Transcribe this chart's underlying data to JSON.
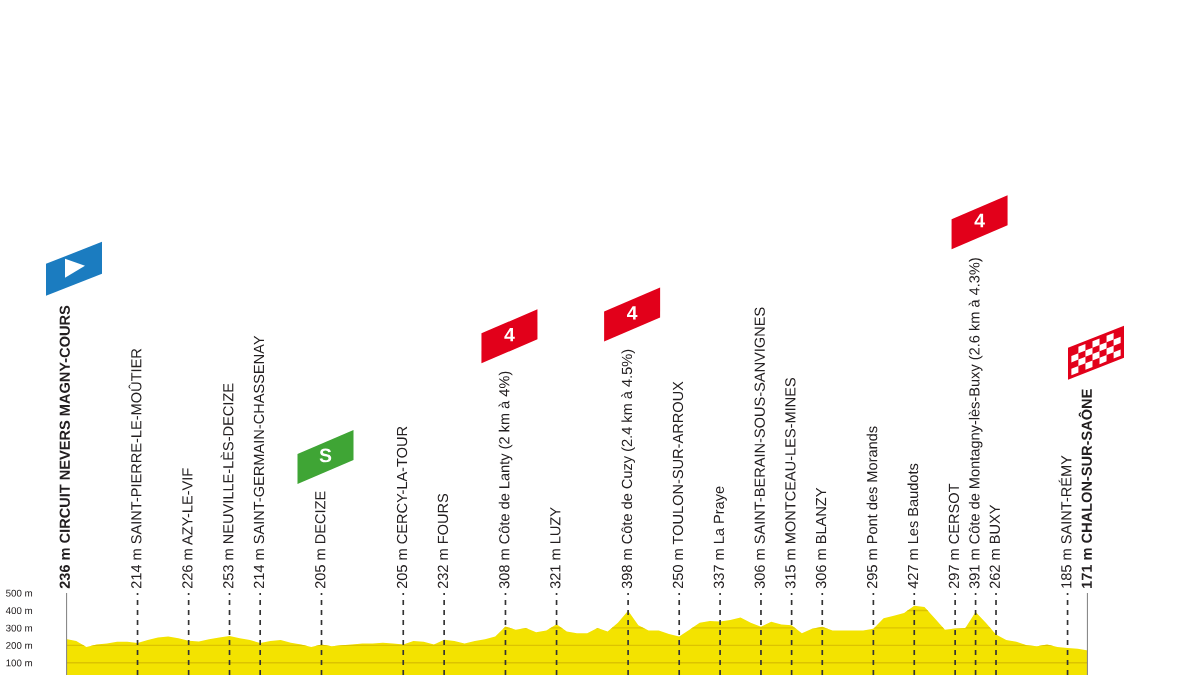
{
  "chart_data": {
    "type": "area",
    "categories": [
      "236 m CIRCUIT NEVERS MAGNY-COURS",
      null,
      null,
      null,
      null,
      null,
      null,
      "214 m SAINT-PIERRE-LE-MOÛTIER",
      null,
      null,
      null,
      null,
      "226 m AZY-LE-VIF",
      null,
      null,
      null,
      "253 m NEUVILLE-LÈS-DECIZE",
      null,
      null,
      "214 m SAINT-GERMAIN-CHASSENAY",
      null,
      null,
      null,
      null,
      null,
      "205 m DECIZE",
      null,
      null,
      null,
      null,
      null,
      null,
      null,
      "205 m CERCY-LA-TOUR",
      null,
      null,
      null,
      "232 m FOURS",
      null,
      null,
      null,
      null,
      null,
      "308 m Côte de Lanty (2 km à 4%)",
      null,
      null,
      null,
      null,
      "321 m LUZY",
      null,
      null,
      null,
      null,
      null,
      null,
      "398 m Côte de Cuzy (2.4 km à 4.5%)",
      null,
      null,
      null,
      null,
      "250 m TOULON-SUR-ARROUX",
      null,
      null,
      null,
      "337 m La Praye",
      null,
      null,
      null,
      "306 m SAINT-BERAIN-SOUS-SANVIGNES",
      null,
      null,
      "315 m MONTCEAU-LES-MINES",
      null,
      null,
      "306 m BLANZY",
      null,
      null,
      null,
      null,
      "295 m Pont des Morands",
      null,
      null,
      null,
      "427 m Les Baudots",
      null,
      null,
      null,
      "297 m CERSOT",
      null,
      "391 m Côte de Montagny-lès-Buxy (2.6 km à 4.3%)",
      null,
      "262 m BUXY",
      null,
      null,
      null,
      null,
      null,
      null,
      "185 m SAINT-RÉMY",
      null,
      "171 m CHALON-SUR-SAÔNE"
    ],
    "values": [
      236,
      225,
      190,
      205,
      210,
      220,
      220,
      214,
      230,
      245,
      250,
      240,
      226,
      222,
      235,
      245,
      253,
      240,
      230,
      214,
      225,
      230,
      215,
      205,
      190,
      205,
      195,
      200,
      205,
      210,
      210,
      215,
      210,
      205,
      225,
      220,
      205,
      232,
      225,
      210,
      225,
      235,
      250,
      308,
      290,
      300,
      275,
      285,
      321,
      280,
      270,
      270,
      300,
      280,
      330,
      398,
      315,
      285,
      285,
      265,
      250,
      290,
      330,
      340,
      337,
      345,
      360,
      330,
      306,
      335,
      320,
      315,
      270,
      295,
      306,
      285,
      285,
      285,
      285,
      295,
      355,
      370,
      385,
      427,
      420,
      355,
      290,
      297,
      300,
      391,
      330,
      262,
      230,
      220,
      200,
      195,
      205,
      190,
      185,
      180,
      171
    ],
    "color": "#f3e300",
    "ylim": [
      30,
      500
    ],
    "yticks": [
      {
        "value": 100,
        "label": "100 m"
      },
      {
        "value": 200,
        "label": "200 m"
      },
      {
        "value": 300,
        "label": "300 m"
      },
      {
        "value": 400,
        "label": "400 m"
      },
      {
        "value": 500,
        "label": "500 m"
      }
    ],
    "grid": true,
    "annotations": [
      "S",
      "4",
      "4",
      "4"
    ]
  }
}
